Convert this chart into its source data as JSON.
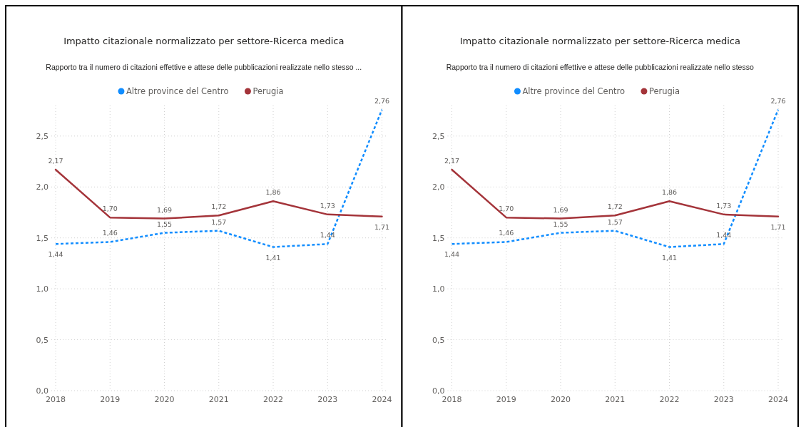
{
  "chart_data": [
    {
      "type": "line",
      "title": "Impatto citazionale normalizzato per settore-Ricerca medica",
      "subtitle": "Rapporto tra il numero di citazioni effettive e attese delle pubblicazioni realizzate nello stesso ...",
      "categories": [
        "2018",
        "2019",
        "2020",
        "2021",
        "2022",
        "2023",
        "2024"
      ],
      "ylim": [
        0,
        2.8
      ],
      "yticks": [
        {
          "value": 0,
          "label": "0,0"
        },
        {
          "value": 0.5,
          "label": "0,5"
        },
        {
          "value": 1,
          "label": "1,0"
        },
        {
          "value": 1.5,
          "label": "1,5"
        },
        {
          "value": 2,
          "label": "2,0"
        },
        {
          "value": 2.5,
          "label": "2,5"
        }
      ],
      "grid": true,
      "legend": "top",
      "marker": "none",
      "series": [
        {
          "name": "Altre province del Centro",
          "color": "#118dff",
          "line_style": "dotted",
          "values": [
            1.44,
            1.46,
            1.55,
            1.57,
            1.41,
            1.44,
            2.76
          ],
          "value_labels": [
            "1,44",
            "1,46",
            "1,55",
            "1,57",
            "1,41",
            "1,44",
            "2,76"
          ]
        },
        {
          "name": "Perugia",
          "color": "#a4343a",
          "line_style": "solid",
          "values": [
            2.17,
            1.7,
            1.69,
            1.72,
            1.86,
            1.73,
            1.71
          ],
          "value_labels": [
            "2,17",
            "1,70",
            "1,69",
            "1,72",
            "1,86",
            "1,73",
            "1,71"
          ]
        }
      ]
    },
    {
      "type": "line",
      "title": "Impatto citazionale normalizzato per settore-Ricerca medica",
      "subtitle": "Rapporto tra il numero di citazioni effettive e attese delle pubblicazioni realizzate nello stesso",
      "categories": [
        "2018",
        "2019",
        "2020",
        "2021",
        "2022",
        "2023",
        "2024"
      ],
      "ylim": [
        0,
        2.8
      ],
      "yticks": [
        {
          "value": 0,
          "label": "0,0"
        },
        {
          "value": 0.5,
          "label": "0,5"
        },
        {
          "value": 1,
          "label": "1,0"
        },
        {
          "value": 1.5,
          "label": "1,5"
        },
        {
          "value": 2,
          "label": "2,0"
        },
        {
          "value": 2.5,
          "label": "2,5"
        }
      ],
      "grid": true,
      "legend": "top",
      "marker": "none",
      "series": [
        {
          "name": "Altre province del Centro",
          "color": "#118dff",
          "line_style": "dotted",
          "values": [
            1.44,
            1.46,
            1.55,
            1.57,
            1.41,
            1.44,
            2.76
          ],
          "value_labels": [
            "1,44",
            "1,46",
            "1,55",
            "1,57",
            "1,41",
            "1,44",
            "2,76"
          ]
        },
        {
          "name": "Perugia",
          "color": "#a4343a",
          "line_style": "solid",
          "values": [
            2.17,
            1.7,
            1.69,
            1.72,
            1.86,
            1.73,
            1.71
          ],
          "value_labels": [
            "2,17",
            "1,70",
            "1,69",
            "1,72",
            "1,86",
            "1,73",
            "1,71"
          ]
        }
      ]
    }
  ]
}
